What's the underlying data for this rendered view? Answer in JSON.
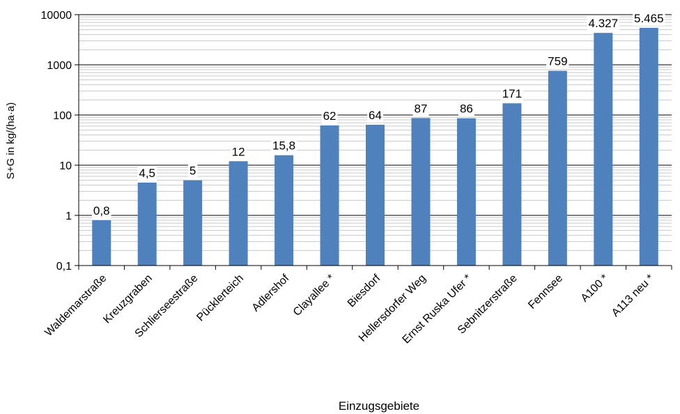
{
  "chart_data": {
    "type": "bar",
    "xlabel": "Einzugsgebiete",
    "ylabel": "S+G in kg/(ha·a)",
    "yscale": "log",
    "ylim": [
      0.1,
      10000
    ],
    "yticks": [
      {
        "value": 10000,
        "label": "10000"
      },
      {
        "value": 1000,
        "label": "1000"
      },
      {
        "value": 100,
        "label": "100"
      },
      {
        "value": 10,
        "label": "10"
      },
      {
        "value": 1,
        "label": "1"
      },
      {
        "value": 0.1,
        "label": "0,1"
      }
    ],
    "grid": true,
    "bar_color": "#4f81bd",
    "categories": [
      "Waldemarstraße",
      "Kreuzgraben",
      "Schlierseestraße",
      "Pücklerteich",
      "Adlershof",
      "Clayallee *",
      "Biesdorf",
      "Hellersdorfer Weg",
      "Ernst Ruska Ufer *",
      "Sebnitzerstraße",
      "Fennsee",
      "A100 *",
      "A113 neu *"
    ],
    "values": [
      0.8,
      4.5,
      5,
      12,
      15.8,
      62,
      64,
      87,
      86,
      171,
      759,
      4327,
      5465
    ],
    "data_labels": [
      "0,8",
      "4,5",
      "5",
      "12",
      "15,8",
      "62",
      "64",
      "87",
      "86",
      "171",
      "759",
      "4.327",
      "5.465"
    ]
  }
}
